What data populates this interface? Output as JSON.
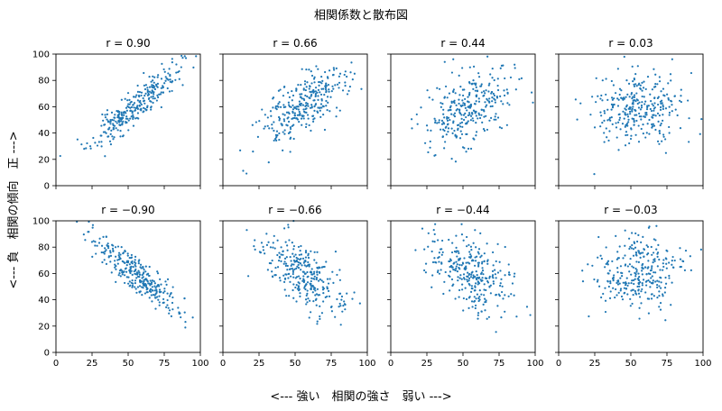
{
  "figure": {
    "suptitle": "相関係数と散布図",
    "xlabel": "<---  強い　相関の強さ　弱い  --->",
    "ylabel": "<---  負　相関の傾向　正  --->"
  },
  "colors": {
    "point": "#1f77b4",
    "axes": "#000000",
    "background": "#ffffff"
  },
  "chart_data": [
    {
      "type": "scatter",
      "title": "r = 0.90",
      "r": 0.9,
      "xlim": [
        0,
        100
      ],
      "ylim": [
        0,
        100
      ],
      "xticks": [
        0,
        25,
        50,
        75,
        100
      ],
      "yticks": [
        0,
        20,
        40,
        60,
        80,
        100
      ],
      "n": 300,
      "x_mean": 55,
      "x_sd": 15,
      "y_mean": 60,
      "y_sd": 15,
      "grid": false,
      "seed": 11
    },
    {
      "type": "scatter",
      "title": "r = 0.66",
      "r": 0.66,
      "xlim": [
        0,
        100
      ],
      "ylim": [
        0,
        100
      ],
      "xticks": [
        0,
        25,
        50,
        75,
        100
      ],
      "yticks": [
        0,
        20,
        40,
        60,
        80,
        100
      ],
      "n": 300,
      "x_mean": 55,
      "x_sd": 15,
      "y_mean": 60,
      "y_sd": 15,
      "grid": false,
      "seed": 23
    },
    {
      "type": "scatter",
      "title": "r = 0.44",
      "r": 0.44,
      "xlim": [
        0,
        100
      ],
      "ylim": [
        0,
        100
      ],
      "xticks": [
        0,
        25,
        50,
        75,
        100
      ],
      "yticks": [
        0,
        20,
        40,
        60,
        80,
        100
      ],
      "n": 300,
      "x_mean": 55,
      "x_sd": 15,
      "y_mean": 60,
      "y_sd": 15,
      "grid": false,
      "seed": 37
    },
    {
      "type": "scatter",
      "title": "r = 0.03",
      "r": 0.03,
      "xlim": [
        0,
        100
      ],
      "ylim": [
        0,
        100
      ],
      "xticks": [
        0,
        25,
        50,
        75,
        100
      ],
      "yticks": [
        0,
        20,
        40,
        60,
        80,
        100
      ],
      "n": 300,
      "x_mean": 55,
      "x_sd": 15,
      "y_mean": 60,
      "y_sd": 15,
      "grid": false,
      "seed": 41
    },
    {
      "type": "scatter",
      "title": "r = −0.90",
      "r": -0.9,
      "xlim": [
        0,
        100
      ],
      "ylim": [
        0,
        100
      ],
      "xticks": [
        0,
        25,
        50,
        75,
        100
      ],
      "yticks": [
        0,
        20,
        40,
        60,
        80,
        100
      ],
      "n": 300,
      "x_mean": 55,
      "x_sd": 15,
      "y_mean": 60,
      "y_sd": 15,
      "grid": false,
      "seed": 53
    },
    {
      "type": "scatter",
      "title": "r = −0.66",
      "r": -0.66,
      "xlim": [
        0,
        100
      ],
      "ylim": [
        0,
        100
      ],
      "xticks": [
        0,
        25,
        50,
        75,
        100
      ],
      "yticks": [
        0,
        20,
        40,
        60,
        80,
        100
      ],
      "n": 300,
      "x_mean": 55,
      "x_sd": 15,
      "y_mean": 60,
      "y_sd": 15,
      "grid": false,
      "seed": 67
    },
    {
      "type": "scatter",
      "title": "r = −0.44",
      "r": -0.44,
      "xlim": [
        0,
        100
      ],
      "ylim": [
        0,
        100
      ],
      "xticks": [
        0,
        25,
        50,
        75,
        100
      ],
      "yticks": [
        0,
        20,
        40,
        60,
        80,
        100
      ],
      "n": 300,
      "x_mean": 55,
      "x_sd": 15,
      "y_mean": 60,
      "y_sd": 15,
      "grid": false,
      "seed": 79
    },
    {
      "type": "scatter",
      "title": "r = −0.03",
      "r": -0.03,
      "xlim": [
        0,
        100
      ],
      "ylim": [
        0,
        100
      ],
      "xticks": [
        0,
        25,
        50,
        75,
        100
      ],
      "yticks": [
        0,
        20,
        40,
        60,
        80,
        100
      ],
      "n": 300,
      "x_mean": 55,
      "x_sd": 15,
      "y_mean": 60,
      "y_sd": 15,
      "grid": false,
      "seed": 97
    }
  ]
}
